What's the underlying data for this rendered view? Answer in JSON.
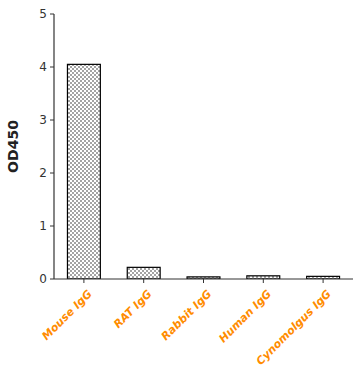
{
  "chart_data": {
    "type": "bar",
    "categories": [
      "Mouse IgG",
      "RAT IgG",
      "Rabbit IgG",
      "Human IgG",
      "Cynomolgus IgG"
    ],
    "values": [
      4.05,
      0.22,
      0.04,
      0.06,
      0.05
    ],
    "ylabel": "OD450",
    "ylim": [
      0,
      5
    ],
    "yticks": [
      0,
      1,
      2,
      3,
      4,
      5
    ],
    "color": "#000000"
  }
}
